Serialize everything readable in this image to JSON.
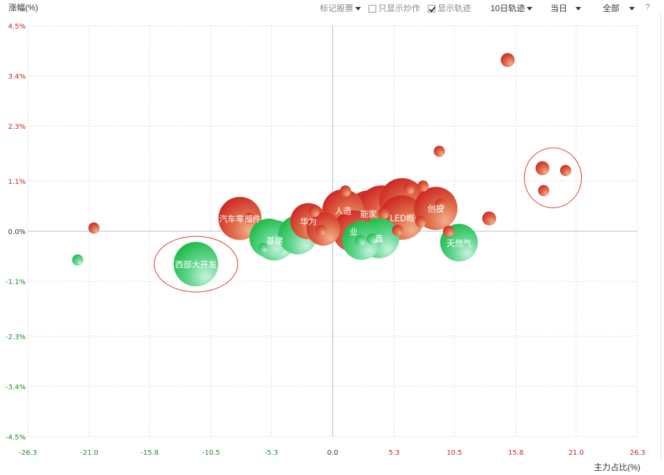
{
  "toolbar": {
    "mark_stocks": "标记股票",
    "only_hype": "只显示炒作",
    "only_hype_checked": false,
    "show_track": "显示轨迹",
    "show_track_checked": true,
    "track_period": "10日轨迹",
    "day": "当日",
    "scope": "全部",
    "help": "?"
  },
  "chart_data": {
    "type": "scatter",
    "ylabel": "涨幅(%)",
    "xlabel": "主力占比(%)",
    "xlim": [
      -26.3,
      26.3
    ],
    "ylim": [
      -4.5,
      4.5
    ],
    "x_ticks": [
      "-26.3",
      "-21.0",
      "-15.8",
      "-10.5",
      "-5.3",
      "0.0",
      "5.3",
      "10.5",
      "15.8",
      "21.0",
      "26.3"
    ],
    "y_ticks": [
      "4.5%",
      "3.4%",
      "2.3%",
      "1.1%",
      "0.0%",
      "-1.1%",
      "-2.3%",
      "-3.4%",
      "-4.5%"
    ],
    "grid": true,
    "colors": {
      "up": "#d43a2a",
      "down": "#22b045",
      "axis": "#a9bfd0",
      "highlight": "#dd3333"
    },
    "points": [
      {
        "x": -20.6,
        "y": 0.07,
        "size": 8,
        "label": ""
      },
      {
        "x": -22.0,
        "y": -0.63,
        "size": 8,
        "label": ""
      },
      {
        "x": -11.8,
        "y": -0.72,
        "size": 32,
        "label": "西部大开发"
      },
      {
        "x": -8.0,
        "y": 0.28,
        "size": 31,
        "label": "汽车零部件"
      },
      {
        "x": -5.5,
        "y": -0.15,
        "size": 28,
        "label": ""
      },
      {
        "x": -5.0,
        "y": -0.2,
        "size": 29,
        "label": "基建"
      },
      {
        "x": -6.0,
        "y": -0.36,
        "size": 7,
        "label": ""
      },
      {
        "x": -7.2,
        "y": 0.28,
        "size": 8,
        "label": ""
      },
      {
        "x": -3.0,
        "y": -0.08,
        "size": 28,
        "label": ""
      },
      {
        "x": -2.1,
        "y": 0.22,
        "size": 26,
        "label": "华为"
      },
      {
        "x": -1.6,
        "y": 0.43,
        "size": 8,
        "label": ""
      },
      {
        "x": -0.8,
        "y": 0.05,
        "size": 24,
        "label": ""
      },
      {
        "x": -1.0,
        "y": 0.02,
        "size": 8,
        "label": ""
      },
      {
        "x": 0.9,
        "y": 0.46,
        "size": 30,
        "label": "人造"
      },
      {
        "x": 1.1,
        "y": 0.88,
        "size": 8,
        "label": ""
      },
      {
        "x": 1.8,
        "y": 0.0,
        "size": 30,
        "label": "业"
      },
      {
        "x": 2.5,
        "y": -0.2,
        "size": 28,
        "label": ""
      },
      {
        "x": 2.4,
        "y": -0.2,
        "size": 8,
        "label": ""
      },
      {
        "x": 3.4,
        "y": -0.17,
        "size": 8,
        "label": ""
      },
      {
        "x": 4.0,
        "y": -0.15,
        "size": 29,
        "label": "鑫"
      },
      {
        "x": 3.1,
        "y": 0.39,
        "size": 33,
        "label": "能家"
      },
      {
        "x": 4.2,
        "y": 0.5,
        "size": 33,
        "label": ""
      },
      {
        "x": 4.4,
        "y": 0.39,
        "size": 8,
        "label": ""
      },
      {
        "x": 5.6,
        "y": 0.02,
        "size": 8,
        "label": ""
      },
      {
        "x": 6.0,
        "y": 0.3,
        "size": 32,
        "label": "LED概"
      },
      {
        "x": 6.0,
        "y": 0.66,
        "size": 33,
        "label": ""
      },
      {
        "x": 6.6,
        "y": 0.93,
        "size": 8,
        "label": ""
      },
      {
        "x": 7.8,
        "y": 0.99,
        "size": 8,
        "label": ""
      },
      {
        "x": 7.6,
        "y": 0.21,
        "size": 8,
        "label": ""
      },
      {
        "x": 8.9,
        "y": 0.5,
        "size": 31,
        "label": "创投"
      },
      {
        "x": 9.3,
        "y": 0.59,
        "size": 8,
        "label": ""
      },
      {
        "x": 10.9,
        "y": -0.25,
        "size": 27,
        "label": "天然气"
      },
      {
        "x": 10.0,
        "y": 0.0,
        "size": 8,
        "label": ""
      },
      {
        "x": 9.2,
        "y": 1.75,
        "size": 8,
        "label": ""
      },
      {
        "x": 13.5,
        "y": 0.28,
        "size": 10,
        "label": ""
      },
      {
        "x": 15.1,
        "y": 3.75,
        "size": 10,
        "label": ""
      },
      {
        "x": 18.1,
        "y": 1.38,
        "size": 10,
        "label": ""
      },
      {
        "x": 18.2,
        "y": 0.89,
        "size": 8,
        "label": ""
      },
      {
        "x": 20.1,
        "y": 1.33,
        "size": 8,
        "label": ""
      }
    ],
    "highlights": [
      {
        "x": -11.8,
        "y": -0.72,
        "rx": 60,
        "ry": 40
      },
      {
        "x": 19.0,
        "y": 1.17,
        "rx": 41,
        "ry": 43
      }
    ]
  }
}
